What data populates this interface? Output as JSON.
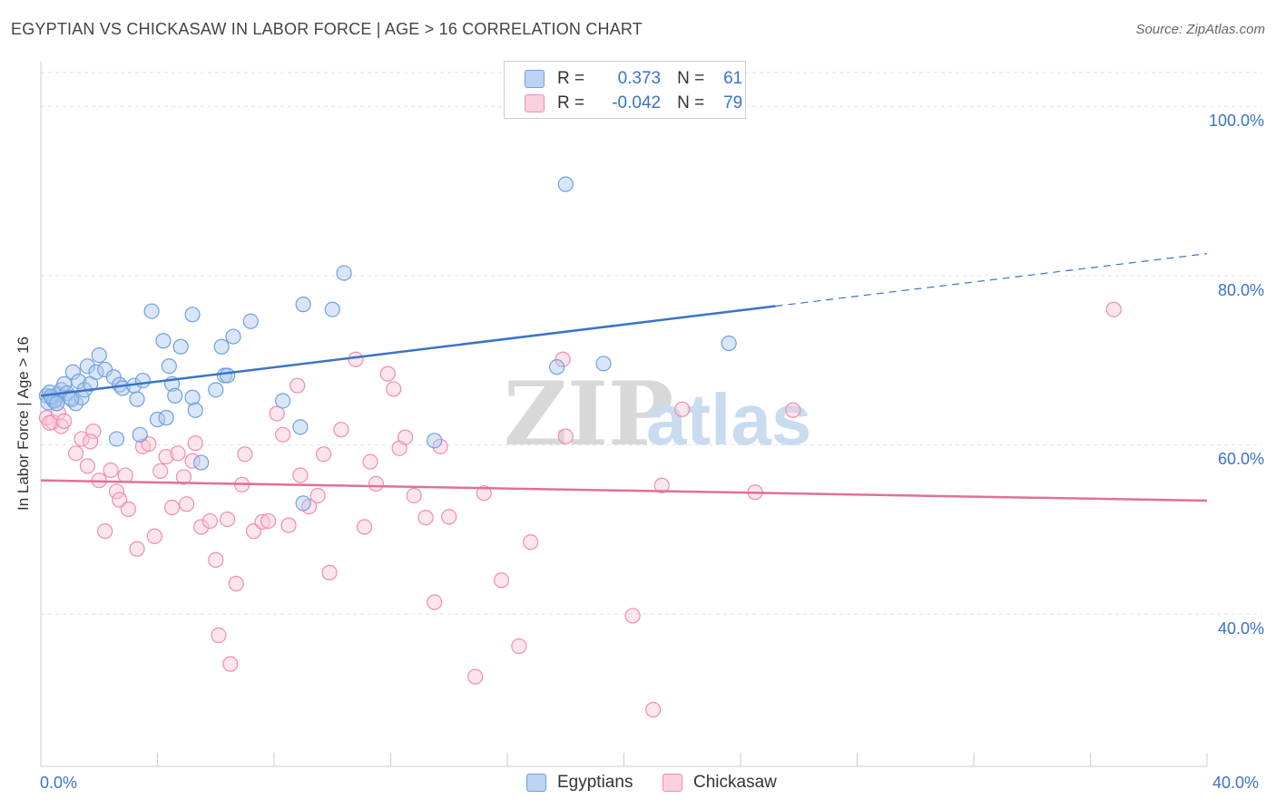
{
  "header": {
    "title": "EGYPTIAN VS CHICKASAW IN LABOR FORCE | AGE > 16 CORRELATION CHART",
    "source": "Source: ZipAtlas.com"
  },
  "watermark": {
    "zip": "ZIP",
    "atlas": "atlas"
  },
  "legend": {
    "rows": [
      {
        "r_label": "R =",
        "r_value": "0.373",
        "n_label": "N =",
        "n_value": "61",
        "color": "#6fa0e0"
      },
      {
        "r_label": "R =",
        "r_value": "-0.042",
        "n_label": "N =",
        "n_value": "79",
        "color": "#f08cb0"
      }
    ]
  },
  "bottom_legend": {
    "items": [
      {
        "label": "Egyptians",
        "color": "#6fa0e0"
      },
      {
        "label": "Chickasaw",
        "color": "#f08cb0"
      }
    ]
  },
  "chart_data": {
    "type": "scatter",
    "title": "EGYPTIAN VS CHICKASAW IN LABOR FORCE | AGE > 16 CORRELATION CHART",
    "xlabel": "",
    "ylabel": "In Labor Force | Age > 16",
    "xlim": [
      0,
      40
    ],
    "ylim": [
      22,
      104
    ],
    "x_tick_labels": [
      "0.0%",
      "40.0%"
    ],
    "y_ticks": [
      40,
      60,
      80,
      100
    ],
    "y_tick_labels": [
      "40.0%",
      "60.0%",
      "80.0%",
      "100.0%"
    ],
    "grid": true,
    "legend_position": "top-center",
    "series": [
      {
        "name": "Egyptians",
        "color": "#6fa0e0",
        "line_color": "#3a73c6",
        "trend": {
          "x0": 0.0,
          "y0": 65.8,
          "x1": 25.2,
          "y1": 76.4,
          "dash_x1": 40.0,
          "dash_y1": 82.6
        },
        "points": [
          [
            0.2,
            65.8
          ],
          [
            0.3,
            66.2
          ],
          [
            0.4,
            65.5
          ],
          [
            0.5,
            65.3
          ],
          [
            0.6,
            66.0
          ],
          [
            0.7,
            66.5
          ],
          [
            0.8,
            67.2
          ],
          [
            0.9,
            66.1
          ],
          [
            1.0,
            65.6
          ],
          [
            1.1,
            68.6
          ],
          [
            1.2,
            64.9
          ],
          [
            1.3,
            67.5
          ],
          [
            1.4,
            65.6
          ],
          [
            1.5,
            66.5
          ],
          [
            1.6,
            69.3
          ],
          [
            1.7,
            67.2
          ],
          [
            1.9,
            68.6
          ],
          [
            2.0,
            70.6
          ],
          [
            2.2,
            68.9
          ],
          [
            2.5,
            68.0
          ],
          [
            2.7,
            67.1
          ],
          [
            2.8,
            66.7
          ],
          [
            3.2,
            67.0
          ],
          [
            3.3,
            65.4
          ],
          [
            3.5,
            67.6
          ],
          [
            3.8,
            75.8
          ],
          [
            4.0,
            63.0
          ],
          [
            4.2,
            72.3
          ],
          [
            4.4,
            69.3
          ],
          [
            4.5,
            67.2
          ],
          [
            4.6,
            65.8
          ],
          [
            4.8,
            71.6
          ],
          [
            5.2,
            65.6
          ],
          [
            5.3,
            64.1
          ],
          [
            5.2,
            75.4
          ],
          [
            6.0,
            66.5
          ],
          [
            6.2,
            71.6
          ],
          [
            6.3,
            68.2
          ],
          [
            6.6,
            72.8
          ],
          [
            6.4,
            68.2
          ],
          [
            7.2,
            74.6
          ],
          [
            8.3,
            65.2
          ],
          [
            8.9,
            62.1
          ],
          [
            9.0,
            76.6
          ],
          [
            10.0,
            76.0
          ],
          [
            10.4,
            80.3
          ],
          [
            2.6,
            60.7
          ],
          [
            3.4,
            61.2
          ],
          [
            4.3,
            63.2
          ],
          [
            5.5,
            57.9
          ],
          [
            9.0,
            53.1
          ],
          [
            13.5,
            60.5
          ],
          [
            17.7,
            69.2
          ],
          [
            18.0,
            90.8
          ],
          [
            19.3,
            69.6
          ],
          [
            23.6,
            72.0
          ],
          [
            0.25,
            65.0
          ],
          [
            0.45,
            65.2
          ],
          [
            0.35,
            65.7
          ],
          [
            0.55,
            64.9
          ],
          [
            1.05,
            65.4
          ]
        ]
      },
      {
        "name": "Chickasaw",
        "color": "#f08cb0",
        "line_color": "#e0709a",
        "trend": {
          "x0": 0.0,
          "y0": 55.8,
          "x1": 40.0,
          "y1": 53.4
        },
        "points": [
          [
            0.2,
            63.2
          ],
          [
            0.4,
            62.7
          ],
          [
            0.6,
            63.8
          ],
          [
            0.7,
            62.2
          ],
          [
            0.8,
            62.8
          ],
          [
            1.2,
            59.0
          ],
          [
            1.4,
            60.7
          ],
          [
            1.6,
            57.5
          ],
          [
            1.8,
            61.6
          ],
          [
            2.0,
            55.8
          ],
          [
            2.2,
            49.8
          ],
          [
            2.4,
            57.0
          ],
          [
            2.6,
            54.5
          ],
          [
            2.7,
            53.5
          ],
          [
            2.9,
            56.4
          ],
          [
            3.0,
            52.4
          ],
          [
            3.3,
            47.7
          ],
          [
            3.5,
            59.8
          ],
          [
            3.7,
            60.1
          ],
          [
            3.9,
            49.2
          ],
          [
            4.1,
            56.9
          ],
          [
            4.3,
            58.6
          ],
          [
            4.5,
            52.6
          ],
          [
            4.7,
            59.0
          ],
          [
            4.9,
            56.2
          ],
          [
            5.0,
            53.0
          ],
          [
            5.2,
            58.1
          ],
          [
            5.3,
            60.2
          ],
          [
            5.5,
            50.3
          ],
          [
            5.8,
            51.0
          ],
          [
            6.0,
            46.4
          ],
          [
            6.1,
            37.5
          ],
          [
            6.4,
            51.2
          ],
          [
            6.5,
            34.1
          ],
          [
            6.7,
            43.6
          ],
          [
            6.9,
            55.3
          ],
          [
            7.0,
            58.9
          ],
          [
            7.3,
            49.8
          ],
          [
            7.6,
            50.9
          ],
          [
            7.8,
            51.0
          ],
          [
            8.1,
            63.7
          ],
          [
            8.3,
            61.2
          ],
          [
            8.5,
            50.5
          ],
          [
            8.8,
            67.0
          ],
          [
            8.9,
            56.4
          ],
          [
            9.2,
            52.7
          ],
          [
            9.5,
            54.0
          ],
          [
            9.7,
            58.9
          ],
          [
            9.9,
            44.9
          ],
          [
            10.3,
            61.8
          ],
          [
            10.8,
            70.1
          ],
          [
            11.1,
            50.3
          ],
          [
            11.3,
            58.0
          ],
          [
            11.5,
            55.4
          ],
          [
            11.9,
            68.4
          ],
          [
            12.1,
            66.6
          ],
          [
            12.3,
            59.6
          ],
          [
            12.5,
            60.9
          ],
          [
            12.8,
            54.0
          ],
          [
            13.2,
            51.4
          ],
          [
            13.5,
            41.4
          ],
          [
            13.7,
            59.8
          ],
          [
            14.0,
            51.5
          ],
          [
            14.9,
            32.6
          ],
          [
            15.2,
            54.3
          ],
          [
            15.8,
            44.0
          ],
          [
            16.4,
            36.2
          ],
          [
            16.8,
            48.5
          ],
          [
            17.9,
            70.1
          ],
          [
            18.0,
            61.0
          ],
          [
            20.3,
            39.8
          ],
          [
            21.0,
            28.7
          ],
          [
            21.3,
            55.2
          ],
          [
            22.0,
            64.2
          ],
          [
            24.5,
            54.4
          ],
          [
            25.8,
            64.1
          ],
          [
            36.8,
            76.0
          ],
          [
            0.3,
            62.6
          ],
          [
            1.7,
            60.4
          ]
        ]
      }
    ]
  }
}
